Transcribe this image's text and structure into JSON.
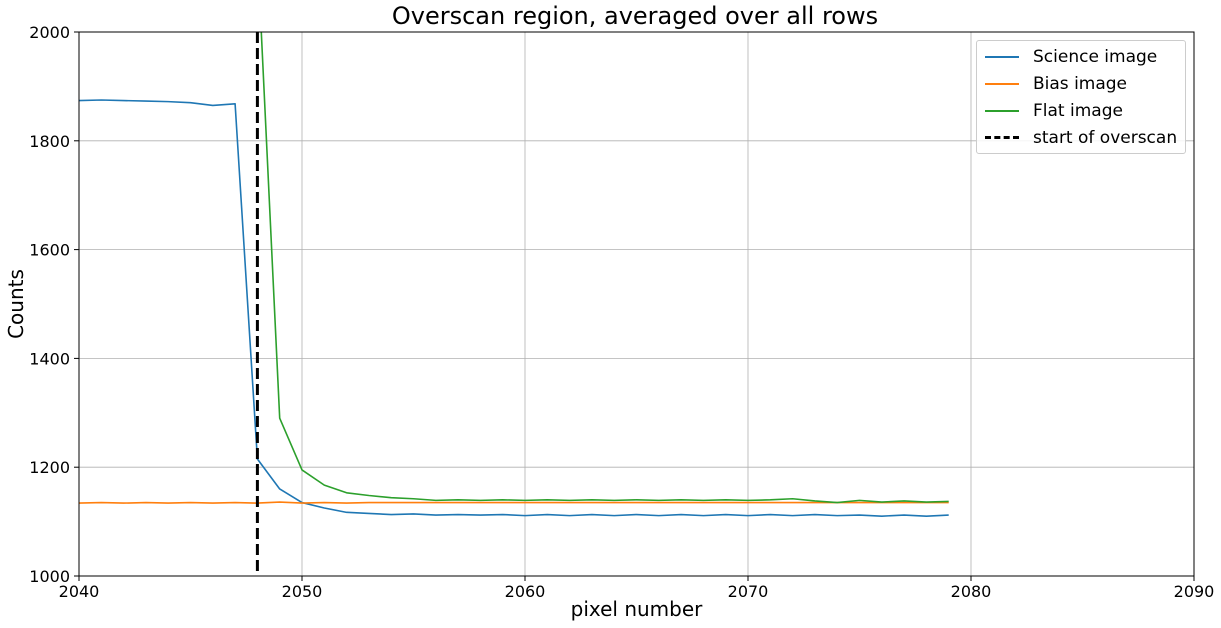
{
  "chart_data": {
    "type": "line",
    "title": "Overscan region, averaged over all rows",
    "xlabel": "pixel number",
    "ylabel": "Counts",
    "xlim": [
      2040,
      2090
    ],
    "ylim": [
      1000,
      2000
    ],
    "xticks": [
      2040,
      2050,
      2060,
      2070,
      2080,
      2090
    ],
    "yticks": [
      1000,
      1200,
      1400,
      1600,
      1800,
      2000
    ],
    "grid": true,
    "legend_position": "top-right",
    "x": [
      2040,
      2041,
      2042,
      2043,
      2044,
      2045,
      2046,
      2047,
      2048,
      2049,
      2050,
      2051,
      2052,
      2053,
      2054,
      2055,
      2056,
      2057,
      2058,
      2059,
      2060,
      2061,
      2062,
      2063,
      2064,
      2065,
      2066,
      2067,
      2068,
      2069,
      2070,
      2071,
      2072,
      2073,
      2074,
      2075,
      2076,
      2077,
      2078,
      2079
    ],
    "series": [
      {
        "name": "Science image",
        "color": "#1f77b4",
        "values": [
          1874,
          1875,
          1874,
          1873,
          1872,
          1870,
          1865,
          1868,
          1215,
          1160,
          1135,
          1125,
          1117,
          1115,
          1113,
          1114,
          1112,
          1113,
          1112,
          1113,
          1111,
          1113,
          1111,
          1113,
          1111,
          1113,
          1111,
          1113,
          1111,
          1113,
          1111,
          1113,
          1111,
          1113,
          1111,
          1112,
          1110,
          1112,
          1110,
          1112
        ]
      },
      {
        "name": "Bias image",
        "color": "#ff7f0e",
        "values": [
          1134,
          1135,
          1134,
          1135,
          1134,
          1135,
          1134,
          1135,
          1134,
          1136,
          1134,
          1135,
          1134,
          1135,
          1135,
          1135,
          1135,
          1135,
          1135,
          1135,
          1135,
          1135,
          1135,
          1135,
          1135,
          1135,
          1135,
          1135,
          1135,
          1135,
          1135,
          1135,
          1135,
          1135,
          1135,
          1135,
          1135,
          1135,
          1135,
          1135
        ]
      },
      {
        "name": "Flat image",
        "color": "#2ca02c",
        "values": [
          null,
          null,
          null,
          null,
          null,
          null,
          null,
          null,
          2150,
          1290,
          1195,
          1167,
          1153,
          1148,
          1144,
          1142,
          1139,
          1140,
          1139,
          1140,
          1139,
          1140,
          1139,
          1140,
          1139,
          1140,
          1139,
          1140,
          1139,
          1140,
          1139,
          1140,
          1142,
          1138,
          1135,
          1139,
          1136,
          1138,
          1136,
          1137
        ]
      }
    ],
    "vline": {
      "name": "start of overscan",
      "x": 2048,
      "color": "#000000",
      "style": "dashed"
    }
  }
}
